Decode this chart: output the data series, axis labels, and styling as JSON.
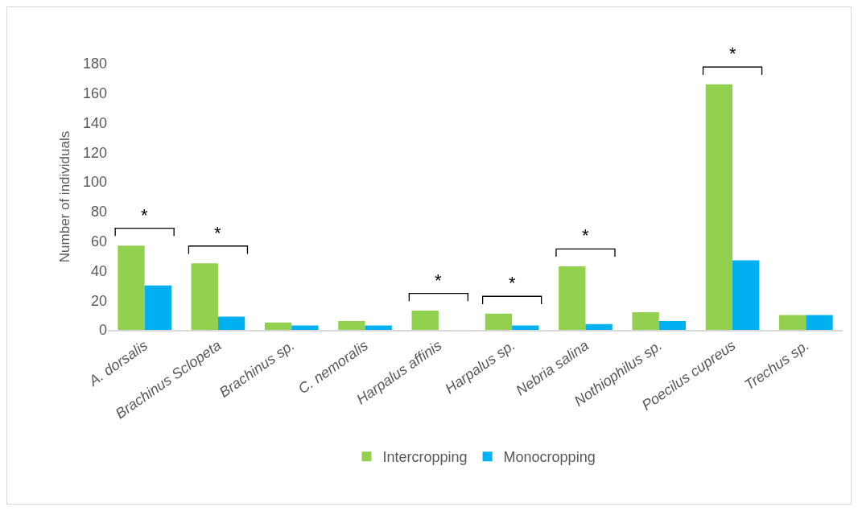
{
  "chart_data": {
    "type": "bar",
    "ylabel": "Number of individuals",
    "categories": [
      "A. dorsalis",
      "Brachinus Sclopeta",
      "Brachinus sp.",
      "C. nemoralis",
      "Harpalus affinis",
      "Harpalus sp.",
      "Nebria salina",
      "Nothiophilus sp.",
      "Poecilus cupreus",
      "Trechus sp."
    ],
    "series": [
      {
        "name": "Intercropping",
        "color": "#92d050",
        "values": [
          57,
          45,
          5,
          6,
          13,
          11,
          43,
          12,
          166,
          10
        ]
      },
      {
        "name": "Monocropping",
        "color": "#00b0f0",
        "values": [
          30,
          9,
          3,
          3,
          0,
          3,
          4,
          6,
          47,
          10
        ]
      }
    ],
    "ylim": [
      0,
      180
    ],
    "yticks": [
      0,
      20,
      40,
      60,
      80,
      100,
      120,
      140,
      160,
      180
    ],
    "grid": false,
    "legend": "bottom",
    "annotations": [
      "*",
      "*",
      "*",
      "*",
      "*",
      "*"
    ]
  }
}
